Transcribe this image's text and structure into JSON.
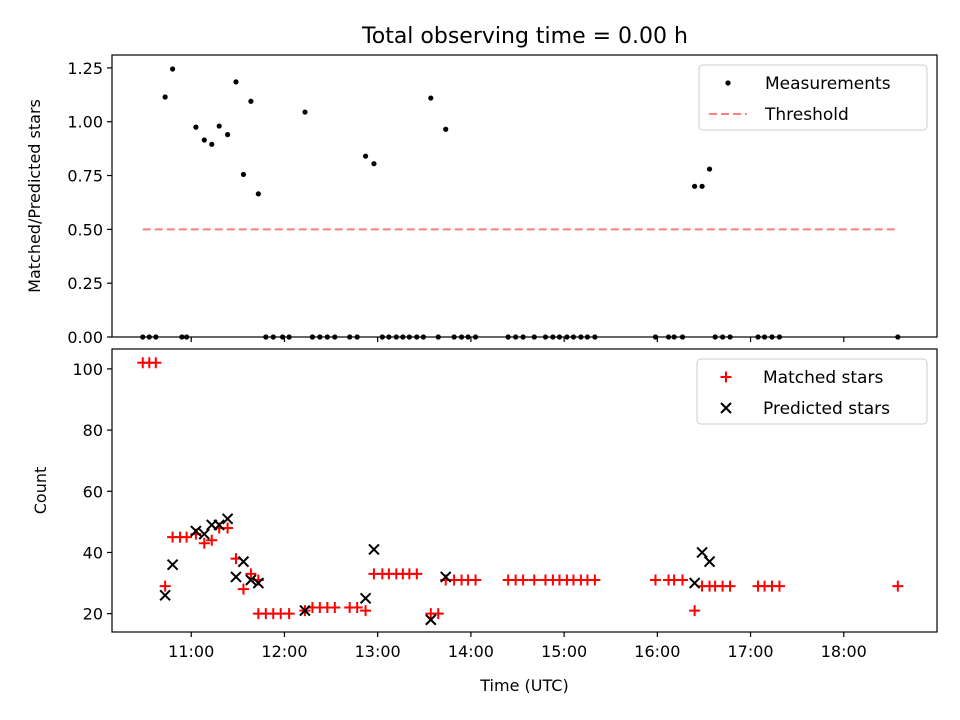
{
  "figure": {
    "title": "Total observing time = 0.00 h"
  },
  "chart_data": [
    {
      "type": "scatter",
      "title": "Total observing time = 0.00 h",
      "xlabel": "",
      "ylabel": "Matched/Predicted stars",
      "x_tick_labels": [
        "11:00",
        "12:00",
        "13:00",
        "14:00",
        "15:00",
        "16:00",
        "17:00",
        "18:00"
      ],
      "x_tick_hours": [
        11,
        12,
        13,
        14,
        15,
        16,
        17,
        18
      ],
      "x_tick_labels_visible": false,
      "xlim_hours": [
        10.15,
        19.0
      ],
      "yticks": [
        0.0,
        0.25,
        0.5,
        0.75,
        1.0,
        1.25
      ],
      "ytick_labels": [
        "0.00",
        "0.25",
        "0.50",
        "0.75",
        "1.00",
        "1.25"
      ],
      "ylim": [
        0.0,
        1.31
      ],
      "legend": {
        "placement": "top-right",
        "entries": [
          "Measurements",
          "Threshold"
        ]
      },
      "series": [
        {
          "name": "Measurements",
          "marker": "dot",
          "color": "#000000",
          "points": [
            [
              10.48,
              0
            ],
            [
              10.55,
              0
            ],
            [
              10.62,
              0
            ],
            [
              10.72,
              1.115
            ],
            [
              10.8,
              1.245
            ],
            [
              10.9,
              0
            ],
            [
              10.95,
              0
            ],
            [
              11.05,
              0.975
            ],
            [
              11.14,
              0.915
            ],
            [
              11.22,
              0.895
            ],
            [
              11.3,
              0.98
            ],
            [
              11.39,
              0.94
            ],
            [
              11.48,
              1.185
            ],
            [
              11.56,
              0.755
            ],
            [
              11.64,
              1.095
            ],
            [
              11.72,
              0.665
            ],
            [
              11.8,
              0
            ],
            [
              11.88,
              0
            ],
            [
              11.98,
              0
            ],
            [
              12.05,
              0
            ],
            [
              12.22,
              1.045
            ],
            [
              12.3,
              0
            ],
            [
              12.38,
              0
            ],
            [
              12.46,
              0
            ],
            [
              12.54,
              0
            ],
            [
              12.7,
              0
            ],
            [
              12.78,
              0
            ],
            [
              12.87,
              0.84
            ],
            [
              12.96,
              0.805
            ],
            [
              13.05,
              0
            ],
            [
              13.12,
              0
            ],
            [
              13.2,
              0
            ],
            [
              13.27,
              0
            ],
            [
              13.34,
              0
            ],
            [
              13.42,
              0
            ],
            [
              13.49,
              0
            ],
            [
              13.57,
              1.11
            ],
            [
              13.65,
              0
            ],
            [
              13.73,
              0.965
            ],
            [
              13.82,
              0
            ],
            [
              13.9,
              0
            ],
            [
              13.97,
              0
            ],
            [
              14.05,
              0
            ],
            [
              14.4,
              0
            ],
            [
              14.48,
              0
            ],
            [
              14.56,
              0
            ],
            [
              14.68,
              0
            ],
            [
              14.8,
              0
            ],
            [
              14.88,
              0
            ],
            [
              14.95,
              0
            ],
            [
              15.03,
              0
            ],
            [
              15.1,
              0
            ],
            [
              15.18,
              0
            ],
            [
              15.25,
              0
            ],
            [
              15.33,
              0
            ],
            [
              15.98,
              0
            ],
            [
              16.12,
              0
            ],
            [
              16.18,
              0
            ],
            [
              16.27,
              0
            ],
            [
              16.4,
              0.7
            ],
            [
              16.48,
              0.7
            ],
            [
              16.56,
              0.78
            ],
            [
              16.62,
              0
            ],
            [
              16.7,
              0
            ],
            [
              16.78,
              0
            ],
            [
              17.08,
              0
            ],
            [
              17.15,
              0
            ],
            [
              17.23,
              0
            ],
            [
              17.31,
              0
            ],
            [
              18.58,
              0
            ]
          ]
        },
        {
          "name": "Threshold",
          "line_style": "dashed",
          "color": "#ff7f7f",
          "points": [
            [
              10.48,
              0.5
            ],
            [
              18.58,
              0.5
            ]
          ]
        }
      ]
    },
    {
      "type": "scatter",
      "title": "",
      "xlabel": "Time (UTC)",
      "ylabel": "Count",
      "x_tick_labels": [
        "11:00",
        "12:00",
        "13:00",
        "14:00",
        "15:00",
        "16:00",
        "17:00",
        "18:00"
      ],
      "x_tick_hours": [
        11,
        12,
        13,
        14,
        15,
        16,
        17,
        18
      ],
      "xlim_hours": [
        10.15,
        19.0
      ],
      "yticks": [
        20,
        40,
        60,
        80,
        100
      ],
      "ytick_labels": [
        "20",
        "40",
        "60",
        "80",
        "100"
      ],
      "ylim": [
        14.0,
        106.5
      ],
      "legend": {
        "placement": "top-right",
        "entries": [
          "Matched stars",
          "Predicted stars"
        ]
      },
      "series": [
        {
          "name": "Matched stars",
          "marker": "plus",
          "color": "#ff0000",
          "points": [
            [
              10.48,
              102
            ],
            [
              10.55,
              102
            ],
            [
              10.62,
              102
            ],
            [
              10.72,
              29
            ],
            [
              10.8,
              45
            ],
            [
              10.88,
              45
            ],
            [
              10.95,
              45
            ],
            [
              11.05,
              46
            ],
            [
              11.14,
              43
            ],
            [
              11.22,
              44
            ],
            [
              11.3,
              48
            ],
            [
              11.39,
              48
            ],
            [
              11.48,
              38
            ],
            [
              11.56,
              28
            ],
            [
              11.64,
              33
            ],
            [
              11.72,
              31
            ],
            [
              11.72,
              20
            ],
            [
              11.8,
              20
            ],
            [
              11.88,
              20
            ],
            [
              11.96,
              20
            ],
            [
              12.05,
              20
            ],
            [
              12.22,
              21
            ],
            [
              12.3,
              22
            ],
            [
              12.38,
              22
            ],
            [
              12.46,
              22
            ],
            [
              12.54,
              22
            ],
            [
              12.7,
              22
            ],
            [
              12.78,
              22
            ],
            [
              12.87,
              21
            ],
            [
              12.96,
              33
            ],
            [
              13.05,
              33
            ],
            [
              13.12,
              33
            ],
            [
              13.2,
              33
            ],
            [
              13.27,
              33
            ],
            [
              13.34,
              33
            ],
            [
              13.42,
              33
            ],
            [
              13.57,
              20
            ],
            [
              13.65,
              20
            ],
            [
              13.73,
              31
            ],
            [
              13.82,
              31
            ],
            [
              13.9,
              31
            ],
            [
              13.97,
              31
            ],
            [
              14.05,
              31
            ],
            [
              14.4,
              31
            ],
            [
              14.48,
              31
            ],
            [
              14.56,
              31
            ],
            [
              14.68,
              31
            ],
            [
              14.8,
              31
            ],
            [
              14.88,
              31
            ],
            [
              14.95,
              31
            ],
            [
              15.03,
              31
            ],
            [
              15.1,
              31
            ],
            [
              15.18,
              31
            ],
            [
              15.25,
              31
            ],
            [
              15.33,
              31
            ],
            [
              15.98,
              31
            ],
            [
              16.12,
              31
            ],
            [
              16.18,
              31
            ],
            [
              16.27,
              31
            ],
            [
              16.4,
              21
            ],
            [
              16.48,
              29
            ],
            [
              16.56,
              29
            ],
            [
              16.62,
              29
            ],
            [
              16.7,
              29
            ],
            [
              16.78,
              29
            ],
            [
              17.08,
              29
            ],
            [
              17.15,
              29
            ],
            [
              17.23,
              29
            ],
            [
              17.31,
              29
            ],
            [
              18.58,
              29
            ]
          ]
        },
        {
          "name": "Predicted stars",
          "marker": "cross",
          "color": "#000000",
          "points": [
            [
              10.72,
              26
            ],
            [
              10.8,
              36
            ],
            [
              11.05,
              47
            ],
            [
              11.14,
              46
            ],
            [
              11.22,
              49
            ],
            [
              11.3,
              49
            ],
            [
              11.39,
              51
            ],
            [
              11.48,
              32
            ],
            [
              11.56,
              37
            ],
            [
              11.64,
              31
            ],
            [
              11.72,
              30
            ],
            [
              12.22,
              21
            ],
            [
              12.87,
              25
            ],
            [
              12.96,
              41
            ],
            [
              13.57,
              18
            ],
            [
              13.73,
              32
            ],
            [
              16.4,
              30
            ],
            [
              16.48,
              40
            ],
            [
              16.56,
              37
            ]
          ]
        }
      ]
    }
  ]
}
